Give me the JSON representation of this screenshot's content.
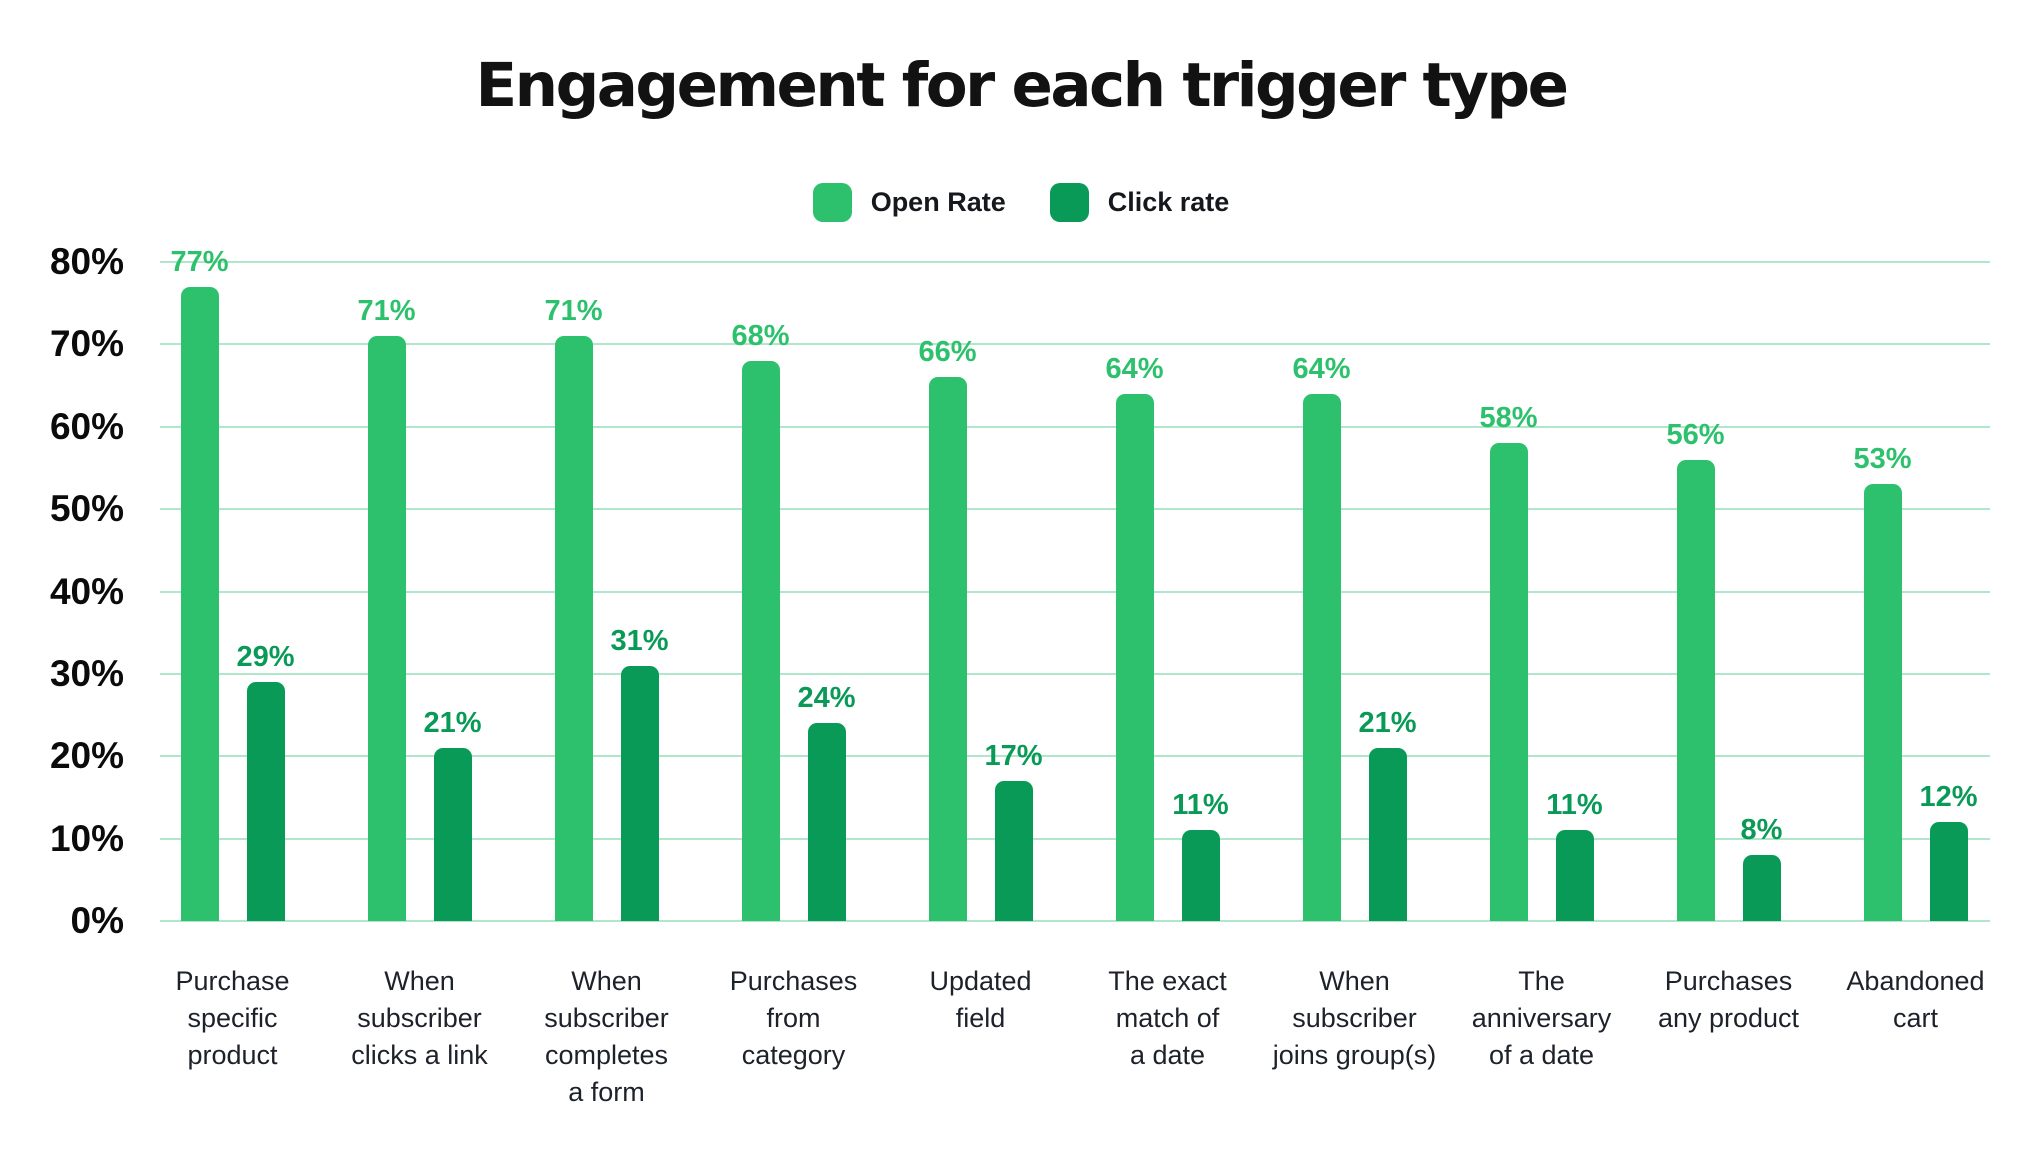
{
  "title": "Engagement for each trigger type",
  "colors": {
    "open_rate": "#2dc16d",
    "click_rate": "#0a9a58",
    "grid_line": "#b0e6c9",
    "title_text": "#121212",
    "axis_text": "#0b0b0b",
    "category_text": "#1d222a",
    "background": "#ffffff"
  },
  "chart_data": {
    "type": "bar",
    "title": "Engagement for each trigger type",
    "xlabel": "",
    "ylabel": "",
    "ylim": [
      0,
      80
    ],
    "grid": true,
    "legend_position": "top",
    "value_labels": "outside-top",
    "y_tick_labels": [
      "0%",
      "10%",
      "20%",
      "30%",
      "40%",
      "50%",
      "60%",
      "70%",
      "80%"
    ],
    "categories": [
      "Purchase specific product",
      "When subscriber clicks a link",
      "When subscriber completes a form",
      "Purchases from category",
      "Updated field",
      "The exact match of a date",
      "When subscriber joins group(s)",
      "The anniversary of a date",
      "Purchases any product",
      "Abandoned cart"
    ],
    "category_lines": [
      [
        "Purchase",
        "specific",
        "product"
      ],
      [
        "When",
        "subscriber",
        "clicks a link"
      ],
      [
        "When",
        "subscriber",
        "completes",
        "a form"
      ],
      [
        "Purchases",
        "from",
        "category"
      ],
      [
        "Updated",
        "field"
      ],
      [
        "The exact",
        "match of",
        "a date"
      ],
      [
        "When",
        "subscriber",
        "joins group(s)"
      ],
      [
        "The",
        "anniversary",
        "of a date"
      ],
      [
        "Purchases",
        "any product"
      ],
      [
        "Abandoned",
        "cart"
      ]
    ],
    "series": [
      {
        "name": "Open Rate",
        "color": "#2dc16d",
        "values": [
          77,
          71,
          71,
          68,
          66,
          64,
          64,
          58,
          56,
          53
        ],
        "labels": [
          "77%",
          "71%",
          "71%",
          "68%",
          "66%",
          "64%",
          "64%",
          "58%",
          "56%",
          "53%"
        ]
      },
      {
        "name": "Click rate",
        "color": "#0a9a58",
        "values": [
          29,
          21,
          31,
          24,
          17,
          11,
          21,
          11,
          8,
          12
        ],
        "labels": [
          "29%",
          "21%",
          "31%",
          "24%",
          "17%",
          "11%",
          "21%",
          "11%",
          "8%",
          "12%"
        ]
      }
    ]
  }
}
